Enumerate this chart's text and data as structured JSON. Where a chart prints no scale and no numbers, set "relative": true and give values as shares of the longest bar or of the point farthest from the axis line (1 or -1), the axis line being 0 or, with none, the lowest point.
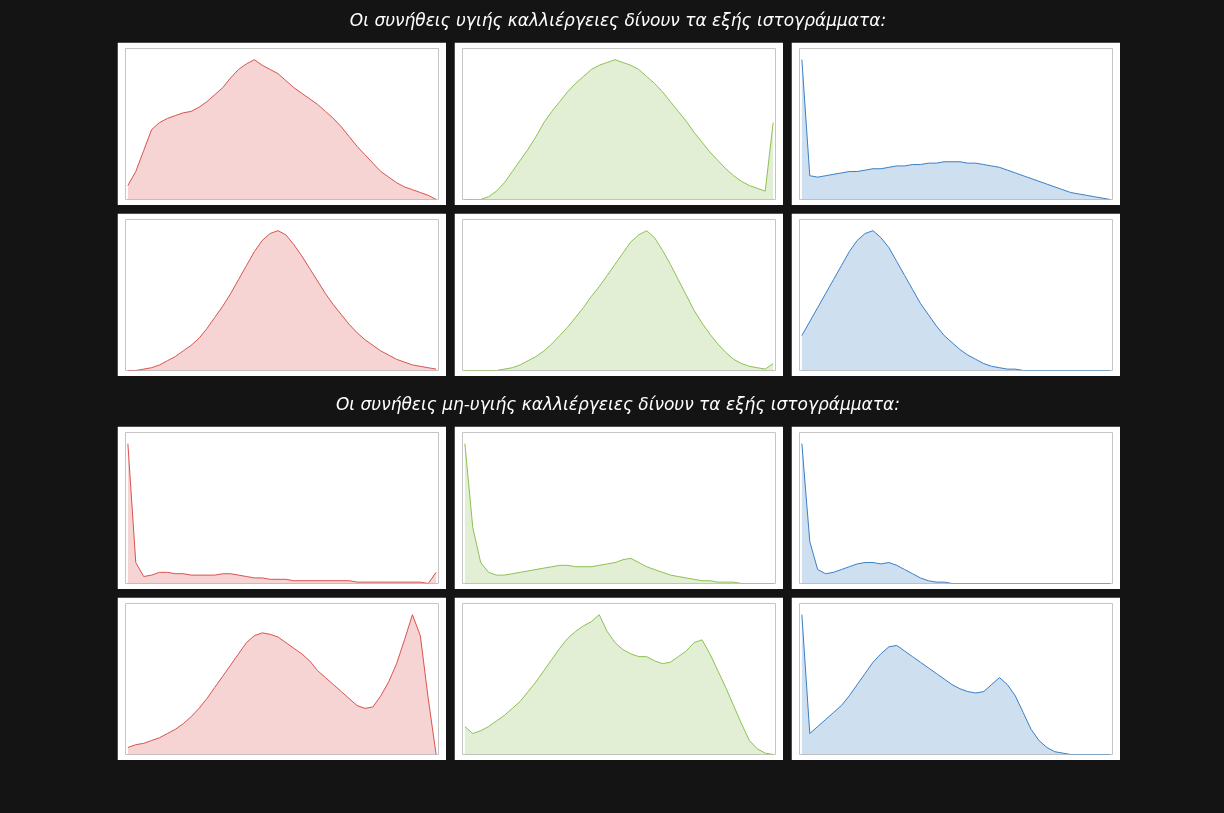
{
  "chart_data": [
    {
      "type": "area",
      "relative": true,
      "title": "Οι συνήθεις υγιής καλλιέργειες δίνουν τα εξής ιστογράμματα:",
      "categories": [
        null,
        null,
        null,
        null,
        null,
        null,
        null,
        null,
        null,
        null,
        null,
        null,
        null,
        null,
        null,
        null,
        null,
        null,
        null,
        null,
        null,
        null,
        null,
        null,
        null,
        null,
        null,
        null,
        null,
        null,
        null,
        null,
        null,
        null,
        null,
        null,
        null,
        null,
        null,
        null
      ],
      "series": [
        {
          "color": "#d9534f",
          "values": [
            0.1,
            0.2,
            0.35,
            0.5,
            0.55,
            0.58,
            0.6,
            0.62,
            0.63,
            0.66,
            0.7,
            0.75,
            0.8,
            0.87,
            0.93,
            0.97,
            1.0,
            0.96,
            0.93,
            0.9,
            0.85,
            0.8,
            0.76,
            0.72,
            0.68,
            0.63,
            0.58,
            0.52,
            0.45,
            0.38,
            0.32,
            0.26,
            0.2,
            0.16,
            0.12,
            0.09,
            0.07,
            0.05,
            0.03,
            0
          ]
        }
      ]
    },
    {
      "type": "area",
      "relative": true,
      "categories": [
        null,
        null,
        null,
        null,
        null,
        null,
        null,
        null,
        null,
        null,
        null,
        null,
        null,
        null,
        null,
        null,
        null,
        null,
        null,
        null,
        null,
        null,
        null,
        null,
        null,
        null,
        null,
        null,
        null,
        null,
        null,
        null,
        null,
        null,
        null,
        null,
        null,
        null,
        null,
        null
      ],
      "series": [
        {
          "color": "#8cc152",
          "values": [
            0,
            0,
            0,
            0.02,
            0.06,
            0.12,
            0.2,
            0.28,
            0.36,
            0.45,
            0.55,
            0.63,
            0.7,
            0.77,
            0.83,
            0.88,
            0.93,
            0.96,
            0.98,
            1.0,
            0.98,
            0.96,
            0.93,
            0.88,
            0.83,
            0.77,
            0.7,
            0.63,
            0.56,
            0.48,
            0.41,
            0.34,
            0.28,
            0.22,
            0.17,
            0.13,
            0.1,
            0.08,
            0.06,
            0.55
          ]
        }
      ]
    },
    {
      "type": "area",
      "relative": true,
      "categories": [
        null,
        null,
        null,
        null,
        null,
        null,
        null,
        null,
        null,
        null,
        null,
        null,
        null,
        null,
        null,
        null,
        null,
        null,
        null,
        null,
        null,
        null,
        null,
        null,
        null,
        null,
        null,
        null,
        null,
        null,
        null,
        null,
        null,
        null,
        null,
        null,
        null,
        null,
        null,
        null
      ],
      "series": [
        {
          "color": "#3b7fc4",
          "values": [
            1.0,
            0.17,
            0.16,
            0.17,
            0.18,
            0.19,
            0.2,
            0.2,
            0.21,
            0.22,
            0.22,
            0.23,
            0.24,
            0.24,
            0.25,
            0.25,
            0.26,
            0.26,
            0.27,
            0.27,
            0.27,
            0.26,
            0.26,
            0.25,
            0.24,
            0.23,
            0.21,
            0.19,
            0.17,
            0.15,
            0.13,
            0.11,
            0.09,
            0.07,
            0.05,
            0.04,
            0.03,
            0.02,
            0.01,
            0
          ]
        }
      ]
    },
    {
      "type": "area",
      "relative": true,
      "categories": [
        null,
        null,
        null,
        null,
        null,
        null,
        null,
        null,
        null,
        null,
        null,
        null,
        null,
        null,
        null,
        null,
        null,
        null,
        null,
        null,
        null,
        null,
        null,
        null,
        null,
        null,
        null,
        null,
        null,
        null,
        null,
        null,
        null,
        null,
        null,
        null,
        null,
        null,
        null,
        null
      ],
      "series": [
        {
          "color": "#d9534f",
          "values": [
            0,
            0,
            0.01,
            0.02,
            0.04,
            0.07,
            0.1,
            0.14,
            0.18,
            0.23,
            0.3,
            0.38,
            0.46,
            0.55,
            0.65,
            0.75,
            0.85,
            0.93,
            0.98,
            1.0,
            0.97,
            0.9,
            0.82,
            0.73,
            0.64,
            0.55,
            0.47,
            0.4,
            0.33,
            0.27,
            0.22,
            0.18,
            0.14,
            0.11,
            0.08,
            0.06,
            0.04,
            0.03,
            0.02,
            0.01
          ]
        }
      ]
    },
    {
      "type": "area",
      "relative": true,
      "categories": [
        null,
        null,
        null,
        null,
        null,
        null,
        null,
        null,
        null,
        null,
        null,
        null,
        null,
        null,
        null,
        null,
        null,
        null,
        null,
        null,
        null,
        null,
        null,
        null,
        null,
        null,
        null,
        null,
        null,
        null,
        null,
        null,
        null,
        null,
        null,
        null,
        null,
        null,
        null,
        null
      ],
      "series": [
        {
          "color": "#8cc152",
          "values": [
            0,
            0,
            0,
            0,
            0,
            0.01,
            0.02,
            0.04,
            0.07,
            0.1,
            0.14,
            0.19,
            0.25,
            0.31,
            0.38,
            0.45,
            0.53,
            0.6,
            0.68,
            0.76,
            0.84,
            0.92,
            0.97,
            1.0,
            0.95,
            0.86,
            0.76,
            0.65,
            0.54,
            0.43,
            0.34,
            0.26,
            0.19,
            0.13,
            0.08,
            0.05,
            0.03,
            0.02,
            0.01,
            0.05
          ]
        }
      ]
    },
    {
      "type": "area",
      "relative": true,
      "categories": [
        null,
        null,
        null,
        null,
        null,
        null,
        null,
        null,
        null,
        null,
        null,
        null,
        null,
        null,
        null,
        null,
        null,
        null,
        null,
        null,
        null,
        null,
        null,
        null,
        null,
        null,
        null,
        null,
        null,
        null,
        null,
        null,
        null,
        null,
        null,
        null,
        null,
        null,
        null,
        null
      ],
      "series": [
        {
          "color": "#3b7fc4",
          "values": [
            0.25,
            0.35,
            0.45,
            0.55,
            0.65,
            0.75,
            0.85,
            0.93,
            0.98,
            1.0,
            0.95,
            0.88,
            0.78,
            0.68,
            0.58,
            0.48,
            0.4,
            0.32,
            0.25,
            0.2,
            0.15,
            0.11,
            0.08,
            0.05,
            0.03,
            0.02,
            0.01,
            0.01,
            0,
            0,
            0,
            0,
            0,
            0,
            0,
            0,
            0,
            0,
            0,
            0
          ]
        }
      ]
    },
    {
      "type": "area",
      "relative": true,
      "title": "Οι συνήθεις μη-υγιής καλλιέργειες δίνουν τα εξής ιστογράμματα:",
      "categories": [
        null,
        null,
        null,
        null,
        null,
        null,
        null,
        null,
        null,
        null,
        null,
        null,
        null,
        null,
        null,
        null,
        null,
        null,
        null,
        null,
        null,
        null,
        null,
        null,
        null,
        null,
        null,
        null,
        null,
        null,
        null,
        null,
        null,
        null,
        null,
        null,
        null,
        null,
        null,
        null
      ],
      "series": [
        {
          "color": "#d9534f",
          "values": [
            1.0,
            0.15,
            0.05,
            0.06,
            0.08,
            0.08,
            0.07,
            0.07,
            0.06,
            0.06,
            0.06,
            0.06,
            0.07,
            0.07,
            0.06,
            0.05,
            0.04,
            0.04,
            0.03,
            0.03,
            0.03,
            0.02,
            0.02,
            0.02,
            0.02,
            0.02,
            0.02,
            0.02,
            0.02,
            0.01,
            0.01,
            0.01,
            0.01,
            0.01,
            0.01,
            0.01,
            0.01,
            0.01,
            0,
            0.08
          ]
        }
      ]
    },
    {
      "type": "area",
      "relative": true,
      "categories": [
        null,
        null,
        null,
        null,
        null,
        null,
        null,
        null,
        null,
        null,
        null,
        null,
        null,
        null,
        null,
        null,
        null,
        null,
        null,
        null,
        null,
        null,
        null,
        null,
        null,
        null,
        null,
        null,
        null,
        null,
        null,
        null,
        null,
        null,
        null,
        null,
        null,
        null,
        null,
        null
      ],
      "series": [
        {
          "color": "#8cc152",
          "values": [
            1.0,
            0.4,
            0.15,
            0.08,
            0.06,
            0.06,
            0.07,
            0.08,
            0.09,
            0.1,
            0.11,
            0.12,
            0.13,
            0.13,
            0.12,
            0.12,
            0.12,
            0.13,
            0.14,
            0.15,
            0.17,
            0.18,
            0.15,
            0.12,
            0.1,
            0.08,
            0.06,
            0.05,
            0.04,
            0.03,
            0.02,
            0.02,
            0.01,
            0.01,
            0.01,
            0,
            0,
            0,
            0,
            0
          ]
        }
      ]
    },
    {
      "type": "area",
      "relative": true,
      "categories": [
        null,
        null,
        null,
        null,
        null,
        null,
        null,
        null,
        null,
        null,
        null,
        null,
        null,
        null,
        null,
        null,
        null,
        null,
        null,
        null,
        null,
        null,
        null,
        null,
        null,
        null,
        null,
        null,
        null,
        null,
        null,
        null,
        null,
        null,
        null,
        null,
        null,
        null,
        null,
        null
      ],
      "series": [
        {
          "color": "#3b7fc4",
          "values": [
            1.0,
            0.3,
            0.1,
            0.07,
            0.08,
            0.1,
            0.12,
            0.14,
            0.15,
            0.15,
            0.14,
            0.15,
            0.13,
            0.1,
            0.07,
            0.04,
            0.02,
            0.01,
            0.01,
            0,
            0,
            0,
            0,
            0,
            0,
            0,
            0,
            0,
            0,
            0,
            0,
            0,
            0,
            0,
            0,
            0,
            0,
            0,
            0,
            0
          ]
        }
      ]
    },
    {
      "type": "area",
      "relative": true,
      "categories": [
        null,
        null,
        null,
        null,
        null,
        null,
        null,
        null,
        null,
        null,
        null,
        null,
        null,
        null,
        null,
        null,
        null,
        null,
        null,
        null,
        null,
        null,
        null,
        null,
        null,
        null,
        null,
        null,
        null,
        null,
        null,
        null,
        null,
        null,
        null,
        null,
        null,
        null,
        null,
        null
      ],
      "series": [
        {
          "color": "#d9534f",
          "values": [
            0.05,
            0.07,
            0.08,
            0.1,
            0.12,
            0.15,
            0.18,
            0.22,
            0.27,
            0.33,
            0.4,
            0.48,
            0.56,
            0.64,
            0.72,
            0.8,
            0.85,
            0.87,
            0.86,
            0.84,
            0.8,
            0.76,
            0.72,
            0.67,
            0.6,
            0.55,
            0.5,
            0.45,
            0.4,
            0.35,
            0.33,
            0.34,
            0.42,
            0.52,
            0.65,
            0.82,
            1.0,
            0.85,
            0.4,
            0
          ]
        }
      ]
    },
    {
      "type": "area",
      "relative": true,
      "categories": [
        null,
        null,
        null,
        null,
        null,
        null,
        null,
        null,
        null,
        null,
        null,
        null,
        null,
        null,
        null,
        null,
        null,
        null,
        null,
        null,
        null,
        null,
        null,
        null,
        null,
        null,
        null,
        null,
        null,
        null,
        null,
        null,
        null,
        null,
        null,
        null,
        null,
        null,
        null,
        null
      ],
      "series": [
        {
          "color": "#8cc152",
          "values": [
            0.2,
            0.15,
            0.17,
            0.2,
            0.24,
            0.28,
            0.33,
            0.38,
            0.45,
            0.52,
            0.6,
            0.68,
            0.76,
            0.83,
            0.88,
            0.92,
            0.95,
            1.0,
            0.88,
            0.8,
            0.75,
            0.72,
            0.7,
            0.7,
            0.67,
            0.65,
            0.66,
            0.7,
            0.74,
            0.8,
            0.82,
            0.72,
            0.6,
            0.48,
            0.35,
            0.22,
            0.1,
            0.04,
            0.01,
            0
          ]
        }
      ]
    },
    {
      "type": "area",
      "relative": true,
      "categories": [
        null,
        null,
        null,
        null,
        null,
        null,
        null,
        null,
        null,
        null,
        null,
        null,
        null,
        null,
        null,
        null,
        null,
        null,
        null,
        null,
        null,
        null,
        null,
        null,
        null,
        null,
        null,
        null,
        null,
        null,
        null,
        null,
        null,
        null,
        null,
        null,
        null,
        null,
        null,
        null
      ],
      "series": [
        {
          "color": "#3b7fc4",
          "values": [
            1.0,
            0.15,
            0.2,
            0.25,
            0.3,
            0.35,
            0.42,
            0.5,
            0.58,
            0.66,
            0.72,
            0.77,
            0.78,
            0.74,
            0.7,
            0.66,
            0.62,
            0.58,
            0.54,
            0.5,
            0.47,
            0.45,
            0.44,
            0.45,
            0.5,
            0.55,
            0.5,
            0.42,
            0.3,
            0.18,
            0.1,
            0.05,
            0.02,
            0.01,
            0,
            0,
            0,
            0,
            0,
            0
          ]
        }
      ]
    }
  ]
}
